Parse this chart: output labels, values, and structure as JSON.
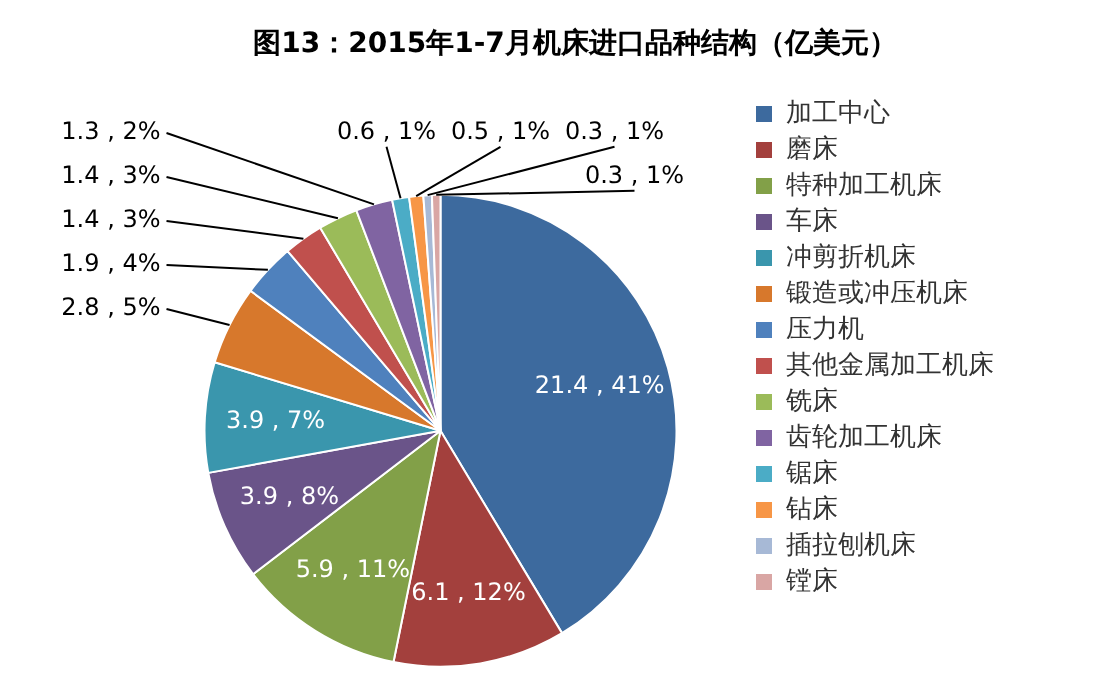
{
  "chart_data": {
    "type": "pie",
    "title": "图13：2015年1-7月机床进口品种结构（亿美元）",
    "categories": [
      "加工中心",
      "磨床",
      "特种加工机床",
      "车床",
      "冲剪折机床",
      "锻造或冲压机床",
      "压力机",
      "其他金属加工机床",
      "铣床",
      "齿轮加工机床",
      "锯床",
      "钻床",
      "插拉刨机床",
      "镗床"
    ],
    "values": [
      21.4,
      6.1,
      5.9,
      3.9,
      3.9,
      2.8,
      1.9,
      1.4,
      1.4,
      1.3,
      0.6,
      0.5,
      0.3,
      0.3
    ],
    "value_labels": [
      "21.4 , 41%",
      "6.1 , 12%",
      "5.9 , 11%",
      "3.9 , 8%",
      "3.9 , 7%",
      "2.8 , 5%",
      "1.9 , 4%",
      "1.4 , 3%",
      "1.4 , 3%",
      "1.3 , 2%",
      "0.6 , 1%",
      "0.5 , 1%",
      "0.3 , 1%",
      "0.3 , 1%"
    ],
    "colors": [
      "#3d6a9e",
      "#a3403d",
      "#82a048",
      "#6a5489",
      "#3a96ad",
      "#d7782c",
      "#4f81bd",
      "#c0504d",
      "#9bbb59",
      "#8064a2",
      "#4bacc6",
      "#f79646",
      "#a7b9d6",
      "#d9a6a4"
    ],
    "legend": "right"
  }
}
